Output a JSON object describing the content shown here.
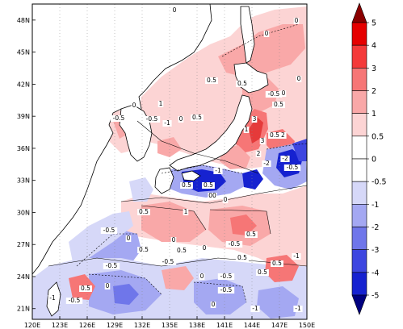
{
  "map": {
    "lon_range": [
      120,
      150
    ],
    "lat_range": [
      20,
      49.5
    ],
    "lon_ticks": [
      "120E",
      "123E",
      "126E",
      "129E",
      "132E",
      "135E",
      "138E",
      "141E",
      "144E",
      "147E",
      "150E"
    ],
    "lat_ticks": [
      "21N",
      "24N",
      "27N",
      "30N",
      "33N",
      "36N",
      "39N",
      "42N",
      "45N",
      "48N"
    ],
    "contour_labels": [
      {
        "text": "0"
      },
      {
        "text": "0"
      },
      {
        "text": "0"
      },
      {
        "text": "0.5"
      },
      {
        "text": "0"
      },
      {
        "text": "0.5"
      },
      {
        "text": "-0.5"
      },
      {
        "text": "0"
      },
      {
        "text": "-0.5"
      },
      {
        "text": "0"
      },
      {
        "text": "1"
      },
      {
        "text": "-0.5"
      },
      {
        "text": "-1"
      },
      {
        "text": "0"
      },
      {
        "text": "0.5"
      },
      {
        "text": "3"
      },
      {
        "text": "3"
      },
      {
        "text": "1"
      },
      {
        "text": "-2"
      },
      {
        "text": "0.5"
      },
      {
        "text": "0.5"
      },
      {
        "text": "-1"
      },
      {
        "text": "-0.5"
      },
      {
        "text": "-2"
      },
      {
        "text": "-2"
      },
      {
        "text": "00"
      },
      {
        "text": "2"
      },
      {
        "text": "0"
      },
      {
        "text": "0.5"
      },
      {
        "text": "0.5"
      },
      {
        "text": "0.5"
      },
      {
        "text": "1"
      },
      {
        "text": "0"
      },
      {
        "text": "-0.5"
      },
      {
        "text": "0"
      },
      {
        "text": "0.5"
      },
      {
        "text": "0.5"
      },
      {
        "text": "-0.5"
      },
      {
        "text": "0"
      },
      {
        "text": "0.5"
      },
      {
        "text": "-0.5"
      },
      {
        "text": "0.5"
      },
      {
        "text": "0.5"
      },
      {
        "text": "0.5"
      },
      {
        "text": "-1"
      },
      {
        "text": "-0.5"
      },
      {
        "text": "0"
      },
      {
        "text": "-0.5"
      },
      {
        "text": "0.5"
      },
      {
        "text": "0"
      },
      {
        "text": "-0.5"
      },
      {
        "text": "-1"
      },
      {
        "text": "-0.5"
      },
      {
        "text": "0"
      },
      {
        "text": "-1"
      },
      {
        "text": "-1"
      }
    ]
  },
  "colorbar": {
    "labels": [
      "5",
      "4",
      "3",
      "2",
      "1",
      "0.5",
      "0",
      "-0.5",
      "-1",
      "-2",
      "-3",
      "-4",
      "-5"
    ],
    "colors": [
      "#b00000",
      "#e50000",
      "#f43a3a",
      "#f67676",
      "#f9a8a8",
      "#fcd4d4",
      "#ffffff",
      "#d6d8f8",
      "#a4a8f2",
      "#6f76ea",
      "#3d46e0",
      "#1622d0",
      "#0510a6"
    ],
    "top_arrow_color": "#8b0000",
    "bottom_arrow_color": "#000080"
  },
  "palette": {
    "land": "#ffffff",
    "ocean_neutral": "#ffffff",
    "red_light": "#fcd4d4",
    "red_mid": "#f9a8a8",
    "red_strong": "#f67676",
    "red_dark": "#e53a3a",
    "blue_light": "#d6d8f8",
    "blue_mid": "#a4a8f2",
    "blue_strong": "#6f76ea",
    "blue_dark": "#1622d0"
  }
}
